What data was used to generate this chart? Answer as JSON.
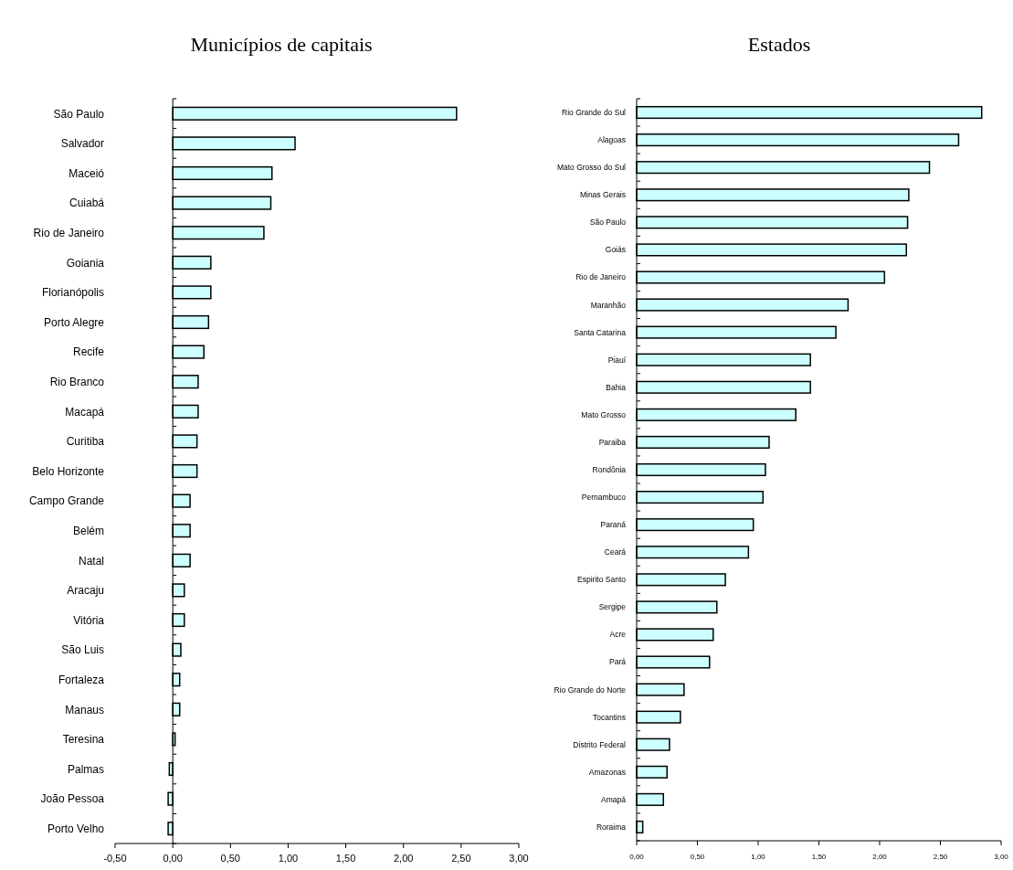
{
  "chart_data": [
    {
      "type": "bar",
      "title": "Municípios de capitais",
      "orientation": "horizontal",
      "color": "#ccffff",
      "categories": [
        "São Paulo",
        "Salvador",
        "Maceió",
        "Cuiabá",
        "Rio de Janeiro",
        "Goiania",
        "Florianópolis",
        "Porto Alegre",
        "Recife",
        "Rio Branco",
        "Macapá",
        "Curitiba",
        "Belo Horizonte",
        "Campo Grande",
        "Belém",
        "Natal",
        "Aracaju",
        "Vitória",
        "São Luis",
        "Fortaleza",
        "Manaus",
        "Teresina",
        "Palmas",
        "João Pessoa",
        "Porto Velho"
      ],
      "values": [
        2.46,
        1.06,
        0.86,
        0.85,
        0.79,
        0.33,
        0.33,
        0.31,
        0.27,
        0.22,
        0.22,
        0.21,
        0.21,
        0.15,
        0.15,
        0.15,
        0.1,
        0.1,
        0.07,
        0.06,
        0.06,
        0.02,
        -0.03,
        -0.04,
        -0.04
      ],
      "xlim": [
        -0.5,
        3
      ],
      "xticks": [
        {
          "value": -0.5,
          "label": "-0,50"
        },
        {
          "value": 0,
          "label": "0,00"
        },
        {
          "value": 0.5,
          "label": "0,50"
        },
        {
          "value": 1,
          "label": "1,00"
        },
        {
          "value": 1.5,
          "label": "1,50"
        },
        {
          "value": 2,
          "label": "2,00"
        },
        {
          "value": 2.5,
          "label": "2,50"
        },
        {
          "value": 3,
          "label": "3,00"
        }
      ]
    },
    {
      "type": "bar",
      "title": "Estados",
      "orientation": "horizontal",
      "color": "#ccffff",
      "categories": [
        "Rio Grande do Sul",
        "Alagoas",
        "Mato Grosso do Sul",
        "Minas Gerais",
        "São Paulo",
        "Goiás",
        "Rio de Janeiro",
        "Maranhão",
        "Santa Catarina",
        "Piauí",
        "Bahia",
        "Mato Grosso",
        "Paraiba",
        "Rondônia",
        "Pernambuco",
        "Paraná",
        "Ceará",
        "Espirito Santo",
        "Sergipe",
        "Acre",
        "Pará",
        "Rio Grande do Norte",
        "Tocantins",
        "Distrito Federal",
        "Amazonas",
        "Amapá",
        "Roraima"
      ],
      "values": [
        2.84,
        2.65,
        2.41,
        2.24,
        2.23,
        2.22,
        2.04,
        1.74,
        1.64,
        1.43,
        1.43,
        1.31,
        1.09,
        1.06,
        1.04,
        0.96,
        0.92,
        0.73,
        0.66,
        0.63,
        0.6,
        0.39,
        0.36,
        0.27,
        0.25,
        0.22,
        0.05
      ],
      "xlim": [
        0,
        3
      ],
      "xticks": [
        {
          "value": 0,
          "label": "0,00"
        },
        {
          "value": 0.5,
          "label": "0,50"
        },
        {
          "value": 1,
          "label": "1,00"
        },
        {
          "value": 1.5,
          "label": "1,50"
        },
        {
          "value": 2,
          "label": "2,00"
        },
        {
          "value": 2.5,
          "label": "2,50"
        },
        {
          "value": 3,
          "label": "3,00"
        }
      ],
      "grid": false
    }
  ]
}
